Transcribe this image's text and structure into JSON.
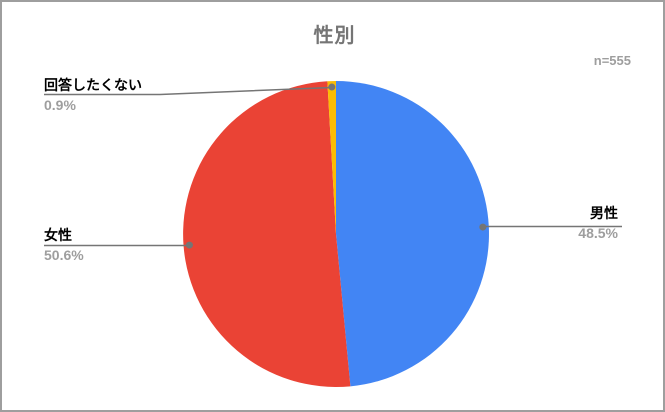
{
  "header": {
    "title": "性別",
    "sample_size": "n=555"
  },
  "chart_data": {
    "type": "pie",
    "title": "性別",
    "sample_label": "n=555",
    "start_angle_deg": 0,
    "direction": "clockwise",
    "legend_position": "outside-labels-with-leader-lines",
    "slices": [
      {
        "id": "male",
        "label": "男性",
        "value": 48.5,
        "percent_label": "48.5%",
        "color": "#4285F4"
      },
      {
        "id": "female",
        "label": "女性",
        "value": 50.6,
        "percent_label": "50.6%",
        "color": "#EA4335"
      },
      {
        "id": "no-answer",
        "label": "回答したくない",
        "value": 0.9,
        "percent_label": "0.9%",
        "color": "#FBBC04"
      }
    ],
    "colors": {
      "title_text": "#757575",
      "label_text": "#000000",
      "percent_text": "#9e9e9e",
      "leader_line": "#757575",
      "frame_border": "#9e9e9e",
      "background": "#ffffff"
    }
  }
}
